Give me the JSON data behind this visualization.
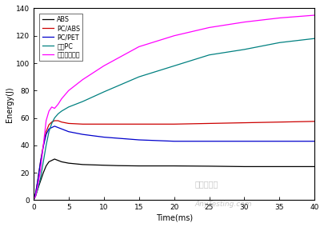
{
  "xlabel": "Time(ms)",
  "ylabel": "Energy(J)",
  "xlim": [
    0,
    40
  ],
  "ylim": [
    0,
    140
  ],
  "xticks": [
    0,
    5,
    10,
    15,
    20,
    25,
    30,
    35,
    40
  ],
  "yticks": [
    0,
    20,
    40,
    60,
    80,
    100,
    120,
    140
  ],
  "legend": [
    "ABS",
    "PC/ABS",
    "PC/PET",
    "超韧PC",
    "邒化玻璃塑料"
  ],
  "colors": [
    "#000000",
    "#cc0000",
    "#0000cc",
    "#008080",
    "#ff00ff"
  ],
  "bg_color": "#ffffff",
  "series": {
    "ABS": {
      "x": [
        0,
        0.3,
        0.6,
        1.0,
        1.4,
        1.8,
        2.2,
        2.6,
        3.0,
        3.5,
        4.0,
        5.0,
        7.0,
        10.0,
        12.0,
        15.0,
        20.0,
        25.0,
        30.0,
        35.0,
        40.0
      ],
      "y": [
        0,
        3,
        8,
        14,
        20,
        25,
        28,
        29,
        30,
        29,
        28,
        27,
        26,
        25.5,
        25.2,
        25,
        25,
        24.8,
        24.5,
        24.5,
        24.5
      ]
    },
    "PC_ABS": {
      "x": [
        0,
        0.3,
        0.6,
        1.0,
        1.4,
        1.8,
        2.2,
        2.6,
        3.0,
        3.5,
        4.0,
        5.0,
        7.0,
        10.0,
        15.0,
        20.0,
        25.0,
        30.0,
        35.0,
        40.0
      ],
      "y": [
        0,
        5,
        14,
        28,
        40,
        50,
        55,
        57,
        58,
        58,
        57,
        56,
        55.5,
        55.5,
        55.5,
        55.5,
        56,
        56.5,
        57,
        57.5
      ]
    },
    "PC_PET": {
      "x": [
        0,
        0.3,
        0.6,
        1.0,
        1.4,
        1.8,
        2.2,
        2.6,
        3.0,
        3.5,
        4.0,
        5.0,
        7.0,
        10.0,
        15.0,
        20.0,
        25.0,
        30.0,
        35.0,
        40.0
      ],
      "y": [
        0,
        5,
        14,
        28,
        39,
        48,
        52,
        53,
        54,
        53,
        52,
        50,
        48,
        46,
        44,
        43,
        43,
        43,
        43,
        43
      ]
    },
    "super_PC": {
      "x": [
        0,
        0.3,
        0.6,
        1.0,
        1.4,
        1.8,
        2.2,
        2.6,
        3.0,
        3.5,
        4.0,
        5.0,
        7.0,
        10.0,
        15.0,
        20.0,
        25.0,
        30.0,
        35.0,
        40.0
      ],
      "y": [
        0,
        3,
        8,
        16,
        28,
        40,
        50,
        56,
        60,
        63,
        65,
        68,
        72,
        79,
        90,
        98,
        106,
        110,
        115,
        118
      ]
    },
    "glass_plastic": {
      "x": [
        0,
        0.3,
        0.6,
        1.0,
        1.4,
        1.8,
        2.2,
        2.6,
        3.0,
        3.5,
        4.0,
        5.0,
        7.0,
        10.0,
        15.0,
        20.0,
        25.0,
        30.0,
        35.0,
        40.0
      ],
      "y": [
        0,
        3,
        10,
        22,
        40,
        58,
        65,
        68,
        67,
        70,
        74,
        80,
        88,
        98,
        112,
        120,
        126,
        130,
        133,
        135
      ]
    }
  },
  "watermark1": "嘉峡检测网",
  "watermark2": "AnyTesting.com",
  "lw": 0.9
}
